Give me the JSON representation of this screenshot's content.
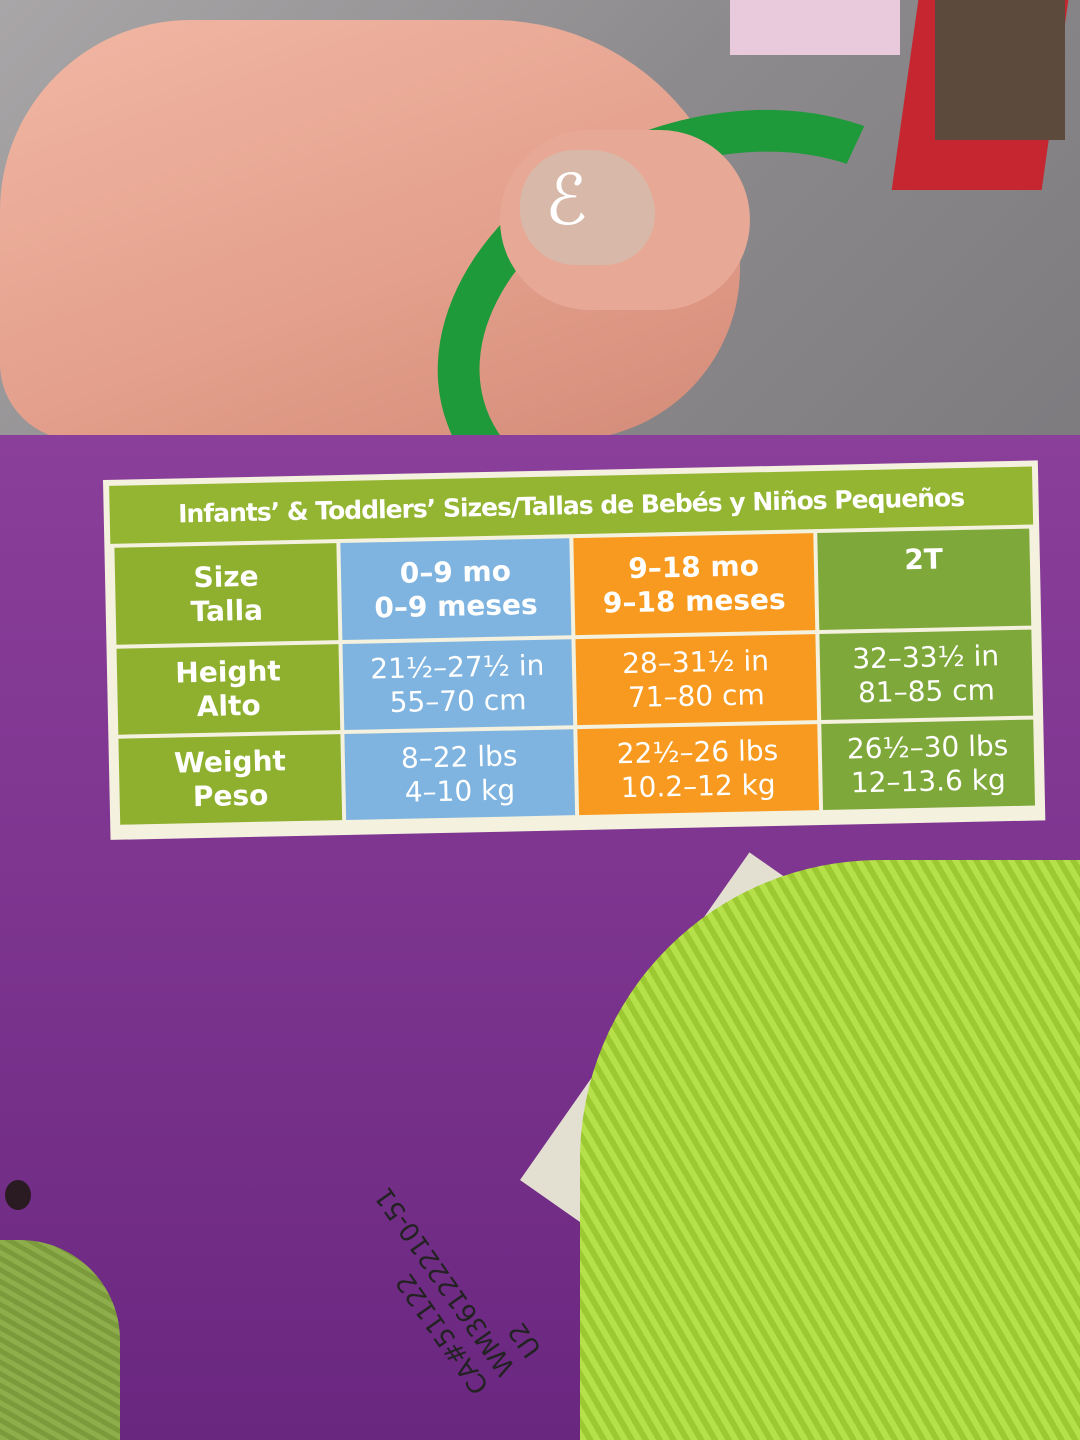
{
  "size_chart": {
    "title": "Infants’ & Toddlers’ Sizes/Tallas de Bebés y Niños Pequeños",
    "rows": [
      {
        "label": [
          "Size",
          "Talla"
        ],
        "cells": [
          [
            "0–9 mo",
            "0–9 meses"
          ],
          [
            "9–18 mo",
            "9–18 meses"
          ],
          [
            "2T",
            ""
          ]
        ]
      },
      {
        "label": [
          "Height",
          "Alto"
        ],
        "cells": [
          [
            "21½–27½ in",
            "55–70 cm"
          ],
          [
            "28–31½ in",
            "71–80 cm"
          ],
          [
            "32–33½ in",
            "81–85 cm"
          ]
        ]
      },
      {
        "label": [
          "Weight",
          "Peso"
        ],
        "cells": [
          [
            "8–22 lbs",
            "4–10 kg"
          ],
          [
            "22½–26 lbs",
            "10.2–12 kg"
          ],
          [
            "26½–30 lbs",
            "12–13.6 kg"
          ]
        ]
      }
    ],
    "colors": {
      "label": "#8fb02f",
      "col1": "#7fb4e0",
      "col2": "#f79a1f",
      "col3": "#7ea83a",
      "box": "#7d3590"
    }
  },
  "tag": {
    "lines": [
      "CA#51122",
      "WM36122210-51",
      "U2"
    ]
  }
}
